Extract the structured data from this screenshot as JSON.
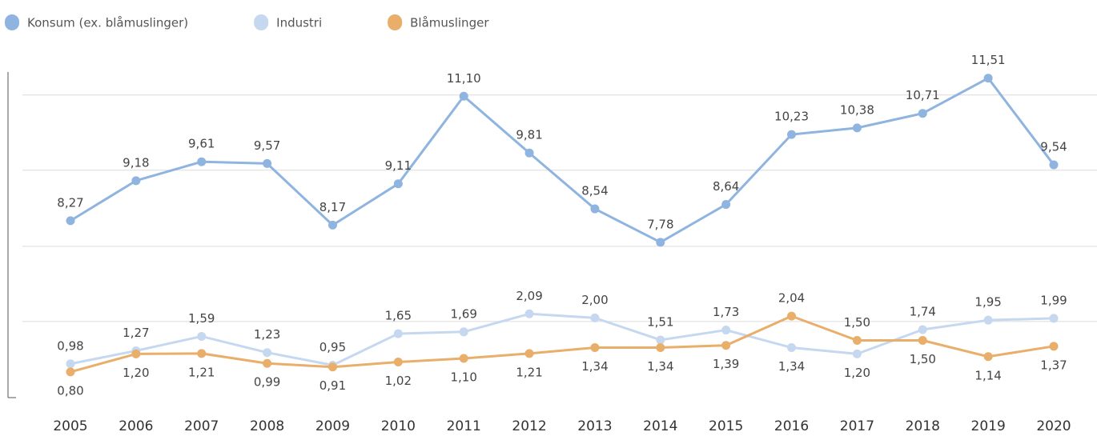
{
  "chart_data": {
    "type": "line",
    "categories": [
      "2005",
      "2006",
      "2007",
      "2008",
      "2009",
      "2010",
      "2011",
      "2012",
      "2013",
      "2014",
      "2015",
      "2016",
      "2017",
      "2018",
      "2019",
      "2020"
    ],
    "series": [
      {
        "name": "Konsum (ex. blåmuslinger)",
        "color": "#8fb4e0",
        "axis": "y2",
        "values": [
          8.27,
          9.18,
          9.61,
          9.57,
          8.17,
          9.11,
          11.1,
          9.81,
          8.54,
          7.78,
          8.64,
          10.23,
          10.38,
          10.71,
          11.51,
          9.54
        ],
        "value_labels": [
          "8,27",
          "9,18",
          "9,61",
          "9,57",
          "8,17",
          "9,11",
          "11,10",
          "9,81",
          "8,54",
          "7,78",
          "8,64",
          "10,23",
          "10,38",
          "10,71",
          "11,51",
          "9,54"
        ]
      },
      {
        "name": "Industri",
        "color": "#c5d8ef",
        "values": [
          0.98,
          1.27,
          1.59,
          1.23,
          0.95,
          1.65,
          1.69,
          2.09,
          2.0,
          1.51,
          1.73,
          1.34,
          1.2,
          1.74,
          1.95,
          1.99
        ],
        "value_labels": [
          "0,98",
          "1,27",
          "1,59",
          "1,23",
          "0,95",
          "1,65",
          "1,69",
          "2,09",
          "2,00",
          "1,51",
          "1,73",
          "1,34",
          "1,20",
          "1,74",
          "1,95",
          "1,99"
        ]
      },
      {
        "name": "Blåmuslinger",
        "color": "#e8ae6a",
        "values": [
          0.8,
          1.2,
          1.21,
          0.99,
          0.91,
          1.02,
          1.1,
          1.21,
          1.34,
          1.34,
          1.39,
          2.04,
          1.5,
          1.5,
          1.14,
          1.37
        ],
        "value_labels": [
          "0,80",
          "1,20",
          "1,21",
          "0,99",
          "0,91",
          "1,02",
          "1,10",
          "1,21",
          "1,34",
          "1,34",
          "1,39",
          "2,04",
          "1,50",
          "1,50",
          "1,14",
          "1,37"
        ]
      }
    ],
    "ylim": [
      0.23,
      7.46
    ],
    "yticks": [
      1.92,
      3.59,
      5.28,
      6.95
    ],
    "y2lim": [
      4.25,
      11.65
    ],
    "grid": true,
    "legend": "top-left"
  }
}
